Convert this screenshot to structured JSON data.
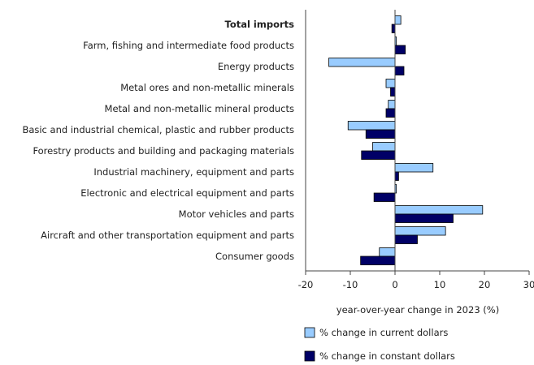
{
  "chart_data": {
    "type": "bar",
    "orientation": "horizontal",
    "categories": [
      "Total imports",
      "Farm, fishing and intermediate food products",
      "Energy products",
      "Metal ores and non-metallic minerals",
      "Metal and non-metallic mineral products",
      "Basic and industrial chemical, plastic and rubber products",
      "Forestry products and building and packaging materials",
      "Industrial machinery, equipment and parts",
      "Electronic and electrical equipment and parts",
      "Motor vehicles and parts",
      "Aircraft and other transportation equipment and parts",
      "Consumer goods"
    ],
    "bold_categories": [
      "Total imports"
    ],
    "series": [
      {
        "name": "% change in current dollars",
        "color": "#99ccff",
        "values": [
          1.3,
          0.3,
          -14.8,
          -2.0,
          -1.5,
          -10.5,
          -5.0,
          8.5,
          0.3,
          19.6,
          11.3,
          -3.5
        ]
      },
      {
        "name": "% change in constant dollars",
        "color": "#000066",
        "values": [
          -0.7,
          2.3,
          2.0,
          -1.0,
          -2.0,
          -6.5,
          -7.5,
          0.8,
          -4.7,
          13.0,
          5.0,
          -7.7
        ]
      }
    ],
    "xlabel": "year-over-year change in 2023 (%)",
    "ylabel": "",
    "xlim": [
      -20,
      30
    ],
    "xticks": [
      -20,
      -10,
      0,
      10,
      20,
      30
    ],
    "grid": false,
    "legend_position": "bottom"
  }
}
